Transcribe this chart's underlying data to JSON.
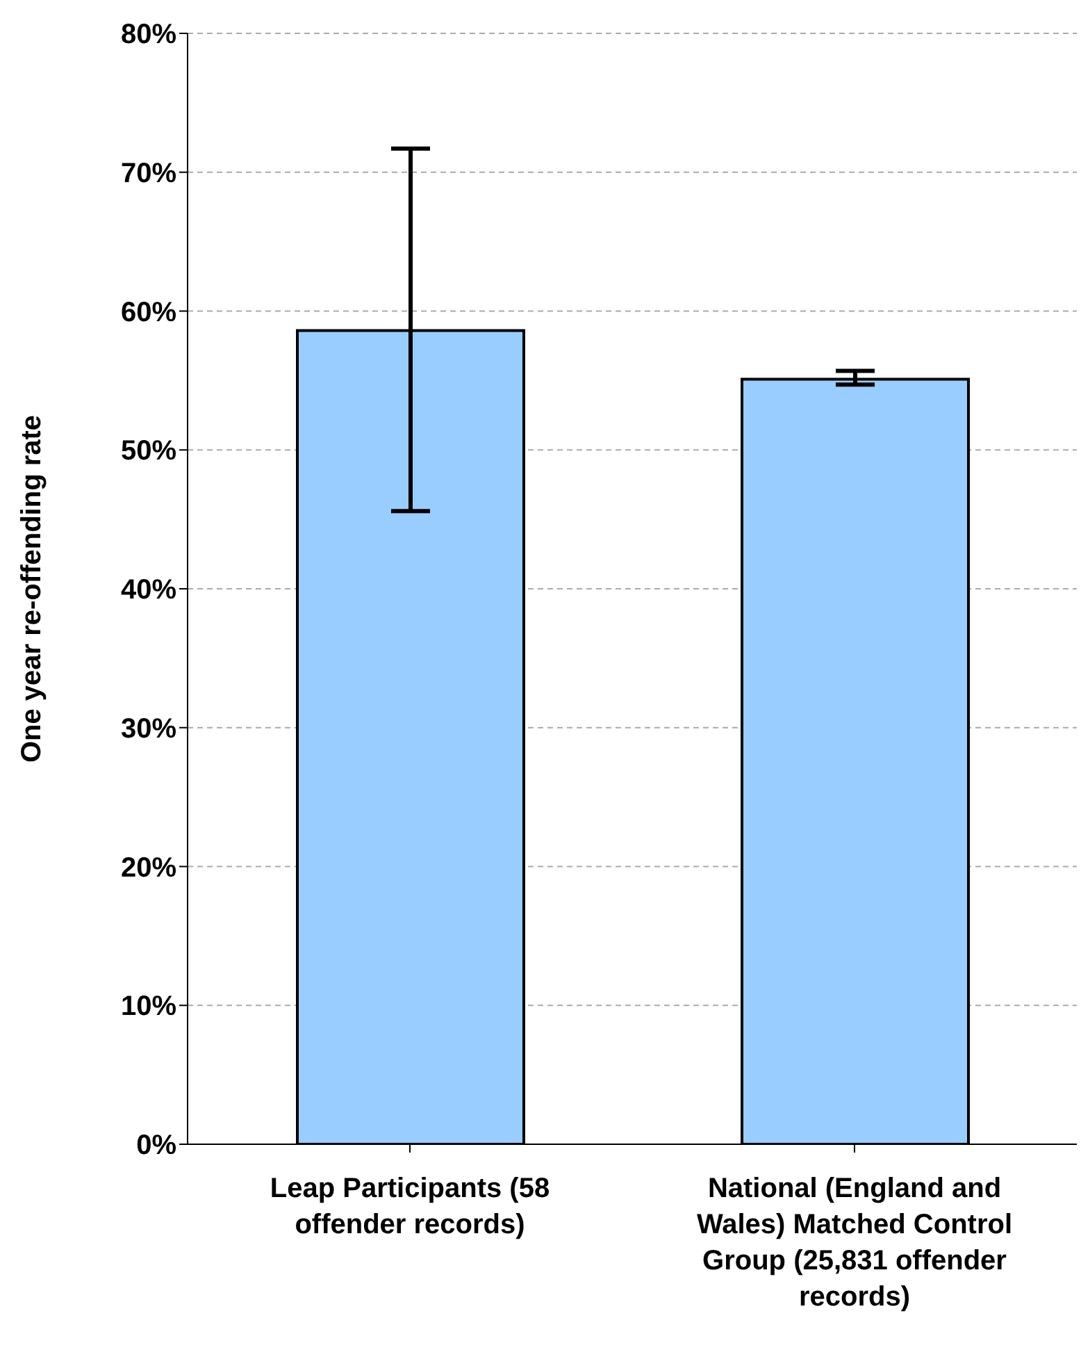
{
  "chart_data": {
    "type": "bar",
    "ylabel": "One year re-offending rate",
    "categories": [
      "Leap Participants (58 offender records)",
      "National (England and Wales) Matched Control Group (25,831 offender records)"
    ],
    "values": [
      58.6,
      55.1
    ],
    "errors": [
      [
        45.6,
        71.7
      ],
      [
        54.7,
        55.7
      ]
    ],
    "color": "#99ccff",
    "ylim": [
      0,
      80
    ],
    "yticks": [
      {
        "value": 0,
        "label": "0%"
      },
      {
        "value": 10,
        "label": "10%"
      },
      {
        "value": 20,
        "label": "20%"
      },
      {
        "value": 30,
        "label": "30%"
      },
      {
        "value": 40,
        "label": "40%"
      },
      {
        "value": 50,
        "label": "50%"
      },
      {
        "value": 60,
        "label": "60%"
      },
      {
        "value": 70,
        "label": "70%"
      },
      {
        "value": 80,
        "label": "80%"
      }
    ],
    "grid": "y",
    "legend": false
  }
}
